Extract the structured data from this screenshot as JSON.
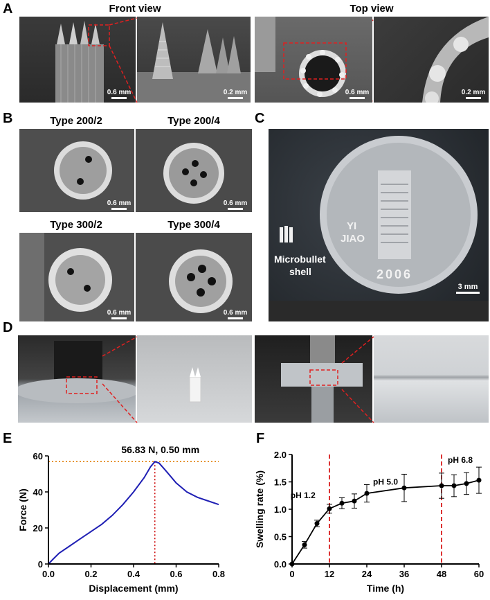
{
  "panels": {
    "A": {
      "label": "A",
      "front_view": "Front view",
      "top_view": "Top view",
      "scales": [
        "0.6 mm",
        "0.2 mm",
        "0.6 mm",
        "0.2 mm"
      ]
    },
    "B": {
      "label": "B",
      "types": [
        "Type 200/2",
        "Type 200/4",
        "Type 300/2",
        "Type 300/4"
      ],
      "scale": "0.6 mm"
    },
    "C": {
      "label": "C",
      "shell_label_1": "Microbullet",
      "shell_label_2": "shell",
      "scale": "3 mm",
      "coin_text_yi": "YI",
      "coin_text_jiao": "JIAO",
      "coin_year": "2006"
    },
    "D": {
      "label": "D"
    },
    "E": {
      "label": "E"
    },
    "F": {
      "label": "F"
    }
  },
  "chart_data": [
    {
      "type": "line",
      "panel": "E",
      "xlabel": "Displacement (mm)",
      "ylabel": "Force (N)",
      "xlim": [
        0,
        0.8
      ],
      "ylim": [
        0,
        60
      ],
      "xticks": [
        "0.0",
        "0.2",
        "0.4",
        "0.6",
        "0.8"
      ],
      "yticks": [
        "0",
        "20",
        "40",
        "60"
      ],
      "annotation": "56.83 N,   0.50 mm",
      "peak": {
        "x": 0.5,
        "y": 56.83
      },
      "line_color": "#1f1fb4",
      "ref_color": "#e07b00",
      "peak_color": "#cc0000",
      "x": [
        0,
        0.02,
        0.05,
        0.1,
        0.15,
        0.2,
        0.25,
        0.3,
        0.35,
        0.4,
        0.45,
        0.48,
        0.5,
        0.52,
        0.55,
        0.6,
        0.65,
        0.7,
        0.75,
        0.8
      ],
      "y": [
        0,
        2.5,
        6,
        10,
        14,
        18,
        22,
        27,
        33,
        40,
        48,
        54,
        56.83,
        56,
        52,
        45,
        40,
        37,
        35,
        33
      ]
    },
    {
      "type": "line",
      "panel": "F",
      "xlabel": "Time (h)",
      "ylabel": "Swelling rate (%)",
      "xlim": [
        0,
        60
      ],
      "ylim": [
        0,
        2.0
      ],
      "xticks": [
        "0",
        "12",
        "24",
        "36",
        "48",
        "60"
      ],
      "yticks": [
        "0.0",
        "0.5",
        "1.0",
        "1.5",
        "2.0"
      ],
      "annotations": [
        "pH 1.2",
        "pH 5.0",
        "pH 6.8"
      ],
      "vlines": [
        12,
        48
      ],
      "vline_color": "#d40000",
      "x": [
        0,
        4,
        8,
        12,
        16,
        20,
        24,
        36,
        48,
        52,
        56,
        60
      ],
      "y": [
        0,
        0.35,
        0.74,
        1.01,
        1.11,
        1.15,
        1.29,
        1.39,
        1.43,
        1.43,
        1.47,
        1.53
      ],
      "err": [
        0,
        0.06,
        0.06,
        0.08,
        0.1,
        0.13,
        0.16,
        0.25,
        0.23,
        0.2,
        0.2,
        0.24
      ]
    }
  ]
}
